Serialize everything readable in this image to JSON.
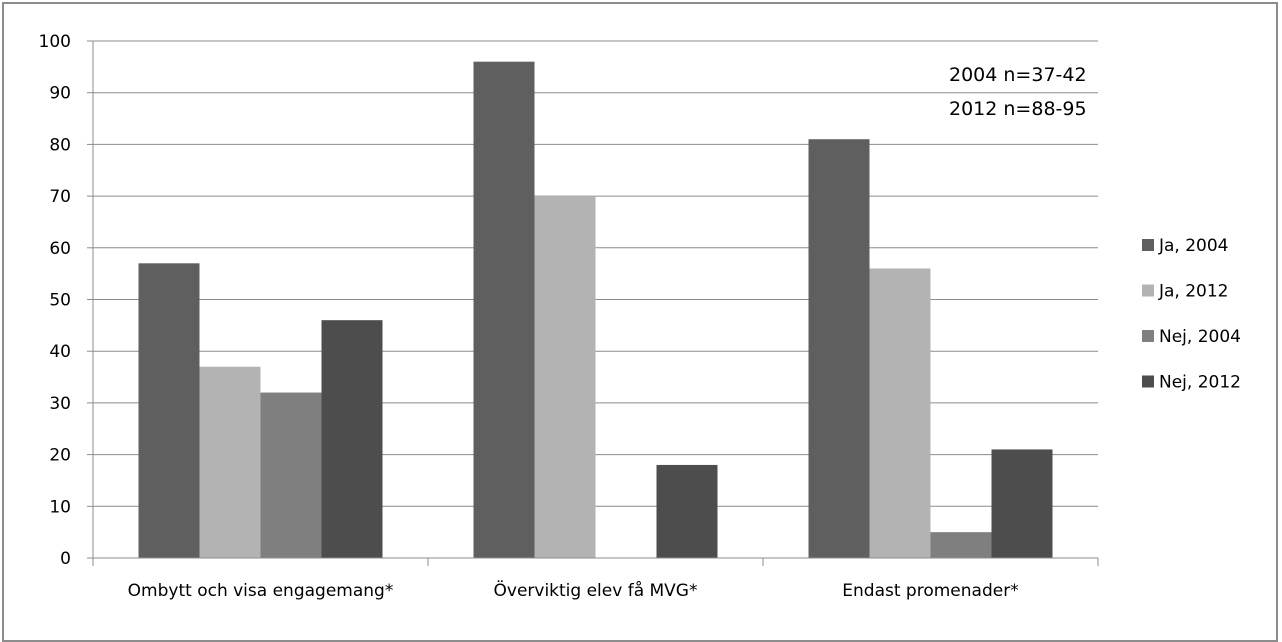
{
  "chart_data": {
    "type": "bar",
    "categories": [
      "Ombytt och visa engagemang*",
      "Överviktig elev få MVG*",
      "Endast promenader*"
    ],
    "series": [
      {
        "name": "Ja, 2004",
        "values": [
          57,
          96,
          81
        ],
        "color": "#5f5f5f"
      },
      {
        "name": "Ja, 2012",
        "values": [
          37,
          70,
          56
        ],
        "color": "#b3b3b3"
      },
      {
        "name": "Nej, 2004",
        "values": [
          32,
          0,
          5
        ],
        "color": "#7f7f7f"
      },
      {
        "name": "Nej, 2012",
        "values": [
          46,
          18,
          21
        ],
        "color": "#4d4d4d"
      }
    ],
    "ylim": [
      0,
      100
    ],
    "yticks": [
      0,
      10,
      20,
      30,
      40,
      50,
      60,
      70,
      80,
      90,
      100
    ],
    "grid": true,
    "legend_position": "right",
    "annotations": [
      "2004 n=37-42",
      "2012 n=88-95"
    ]
  }
}
